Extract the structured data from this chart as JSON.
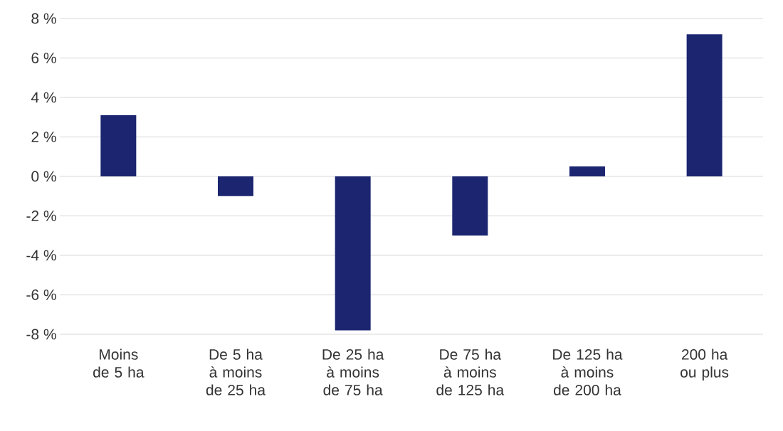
{
  "chart_data": {
    "type": "bar",
    "categories": [
      "Moins de 5 ha",
      "De 5 ha à moins de 25 ha",
      "De 25 ha à moins de 75 ha",
      "De 75 ha à moins de 125 ha",
      "De 125 ha à moins de 200 ha",
      "200 ha ou plus"
    ],
    "values": [
      3.1,
      -1.0,
      -7.8,
      -3.0,
      0.5,
      7.2
    ],
    "color": "#1b2570",
    "ylim": [
      -8,
      8
    ],
    "yticks": [
      {
        "value": -8,
        "label": "-8 %"
      },
      {
        "value": -6,
        "label": "-6 %"
      },
      {
        "value": -4,
        "label": "-4 %"
      },
      {
        "value": -2,
        "label": "-2 %"
      },
      {
        "value": 0,
        "label": "0 %"
      },
      {
        "value": 2,
        "label": "2 %"
      },
      {
        "value": 4,
        "label": "4 %"
      },
      {
        "value": 6,
        "label": "6 %"
      },
      {
        "value": 8,
        "label": "8 %"
      }
    ],
    "grid": "y"
  }
}
